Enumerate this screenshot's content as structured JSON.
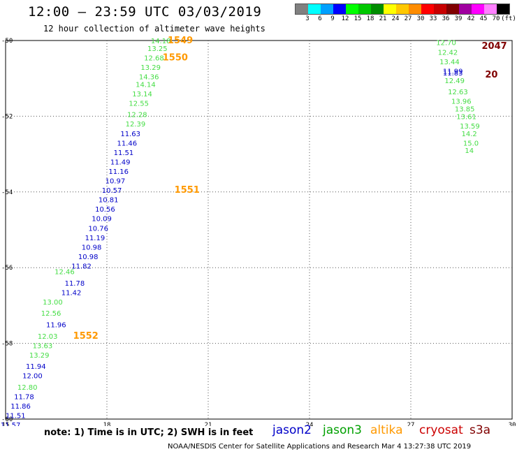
{
  "header": {
    "title": "12:00 — 23:59 UTC 03/03/2019",
    "subtitle": "12 hour collection of altimeter wave heights"
  },
  "legend": {
    "colors": [
      "#808080",
      "#00ffff",
      "#00a0ff",
      "#0000ff",
      "#00ff00",
      "#00c800",
      "#008c00",
      "#ffff00",
      "#ffc800",
      "#ff8c00",
      "#ff0000",
      "#c80000",
      "#800000",
      "#a000a0",
      "#ff00ff",
      "#ff80ff",
      "#000000"
    ],
    "tick_labels": [
      "3",
      "6",
      "9",
      "12",
      "15",
      "18",
      "21",
      "24",
      "27",
      "30",
      "33",
      "36",
      "39",
      "42",
      "45",
      "70",
      "(ft)"
    ]
  },
  "footer": {
    "note": "note: 1) Time is in UTC; 2) SWH is in feet",
    "credit": "NOAA/NESDIS Center for Satellite Applications and Research    Mar  4 13:27:38 UTC 2019"
  },
  "satellites": [
    {
      "name": "jason2",
      "color": "#0000c8"
    },
    {
      "name": "jason3",
      "color": "#00a000"
    },
    {
      "name": "altika",
      "color": "#ff9900"
    },
    {
      "name": "cryosat",
      "color": "#cc0000"
    },
    {
      "name": "s3a",
      "color": "#800000"
    }
  ],
  "chart_data": {
    "type": "scatter",
    "title": "12:00 — 23:59 UTC 03/03/2019",
    "xlim": [
      15,
      30
    ],
    "ylim": [
      -60,
      -50
    ],
    "x_ticks": [
      "15",
      "18",
      "21",
      "24",
      "27",
      "30"
    ],
    "y_ticks": [
      "-50",
      "-52",
      "-54",
      "-56",
      "-58",
      "-60"
    ],
    "grid": true,
    "series": [
      {
        "name": "jason3",
        "color": "#44dd44",
        "points": [
          {
            "x": 19.3,
            "y": -50.0,
            "v": "14.18"
          },
          {
            "x": 19.2,
            "y": -50.2,
            "v": "13.25"
          },
          {
            "x": 19.1,
            "y": -50.45,
            "v": "12.68"
          },
          {
            "x": 19.0,
            "y": -50.7,
            "v": "13.29"
          },
          {
            "x": 18.95,
            "y": -50.95,
            "v": "14.36"
          },
          {
            "x": 18.85,
            "y": -51.15,
            "v": "14.14"
          },
          {
            "x": 18.75,
            "y": -51.4,
            "v": "13.14"
          },
          {
            "x": 18.65,
            "y": -51.65,
            "v": "12.55"
          },
          {
            "x": 18.6,
            "y": -51.95,
            "v": "12.28"
          },
          {
            "x": 18.55,
            "y": -52.2,
            "v": "12.39"
          },
          {
            "x": 16.45,
            "y": -56.1,
            "v": "12.46"
          },
          {
            "x": 16.1,
            "y": -56.9,
            "v": "13.00"
          },
          {
            "x": 16.05,
            "y": -57.2,
            "v": "12.56"
          },
          {
            "x": 15.95,
            "y": -57.8,
            "v": "12.03"
          },
          {
            "x": 15.8,
            "y": -58.05,
            "v": "13.63"
          },
          {
            "x": 15.7,
            "y": -58.3,
            "v": "13.29"
          },
          {
            "x": 15.35,
            "y": -59.15,
            "v": "12.80"
          },
          {
            "x": 27.75,
            "y": -50.05,
            "v": "12.70"
          },
          {
            "x": 27.8,
            "y": -50.3,
            "v": "12.42"
          },
          {
            "x": 27.85,
            "y": -50.55,
            "v": "13.44"
          },
          {
            "x": 28.0,
            "y": -51.05,
            "v": "12.49"
          },
          {
            "x": 28.1,
            "y": -51.35,
            "v": "12.63"
          },
          {
            "x": 28.2,
            "y": -51.6,
            "v": "13.96"
          },
          {
            "x": 28.3,
            "y": -51.8,
            "v": "13.85"
          },
          {
            "x": 28.35,
            "y": -52.0,
            "v": "13.61"
          },
          {
            "x": 28.45,
            "y": -52.25,
            "v": "13.59"
          },
          {
            "x": 28.5,
            "y": -52.45,
            "v": "14.2"
          },
          {
            "x": 28.55,
            "y": -52.7,
            "v": "15.0"
          },
          {
            "x": 28.6,
            "y": -52.9,
            "v": "14"
          }
        ]
      },
      {
        "name": "jason2",
        "color": "#0000c8",
        "points": [
          {
            "x": 18.4,
            "y": -52.45,
            "v": "11.63"
          },
          {
            "x": 18.3,
            "y": -52.7,
            "v": "11.46"
          },
          {
            "x": 18.2,
            "y": -52.95,
            "v": "11.51"
          },
          {
            "x": 18.1,
            "y": -53.2,
            "v": "11.49"
          },
          {
            "x": 18.05,
            "y": -53.45,
            "v": "11.16"
          },
          {
            "x": 17.95,
            "y": -53.7,
            "v": "10.97"
          },
          {
            "x": 17.85,
            "y": -53.95,
            "v": "10.57"
          },
          {
            "x": 17.75,
            "y": -54.2,
            "v": "10.81"
          },
          {
            "x": 17.65,
            "y": -54.45,
            "v": "10.56"
          },
          {
            "x": 17.55,
            "y": -54.7,
            "v": "10.09"
          },
          {
            "x": 17.45,
            "y": -54.95,
            "v": "10.76"
          },
          {
            "x": 17.35,
            "y": -55.2,
            "v": "11.19"
          },
          {
            "x": 17.25,
            "y": -55.45,
            "v": "10.98"
          },
          {
            "x": 17.15,
            "y": -55.7,
            "v": "10.98"
          },
          {
            "x": 16.95,
            "y": -55.95,
            "v": "11.82"
          },
          {
            "x": 16.75,
            "y": -56.4,
            "v": "11.78"
          },
          {
            "x": 16.65,
            "y": -56.65,
            "v": "11.42"
          },
          {
            "x": 16.2,
            "y": -57.5,
            "v": "11.96"
          },
          {
            "x": 15.6,
            "y": -58.6,
            "v": "11.94"
          },
          {
            "x": 15.5,
            "y": -58.85,
            "v": "12.00"
          },
          {
            "x": 15.25,
            "y": -59.4,
            "v": "11.78"
          },
          {
            "x": 15.15,
            "y": -59.65,
            "v": "11.86"
          },
          {
            "x": 15.0,
            "y": -59.9,
            "v": "11.51"
          },
          {
            "x": 14.85,
            "y": -60.15,
            "v": "11.57"
          },
          {
            "x": 14.75,
            "y": -60.4,
            "v": "11.47"
          },
          {
            "x": 27.95,
            "y": -50.8,
            "v": "11.99"
          },
          {
            "x": 27.95,
            "y": -50.85,
            "v": "11.83"
          }
        ]
      },
      {
        "name": "altika",
        "color": "#ff9900",
        "points": [
          {
            "x": 19.8,
            "y": -50.0,
            "v": "1549"
          },
          {
            "x": 19.65,
            "y": -50.45,
            "v": "1550"
          },
          {
            "x": 20.0,
            "y": -53.95,
            "v": "1551"
          },
          {
            "x": 17.0,
            "y": -57.8,
            "v": "1552"
          }
        ]
      },
      {
        "name": "s3a",
        "color": "#800000",
        "points": [
          {
            "x": 29.1,
            "y": -50.15,
            "v": "2047"
          },
          {
            "x": 29.2,
            "y": -50.9,
            "v": "20"
          }
        ]
      }
    ]
  }
}
